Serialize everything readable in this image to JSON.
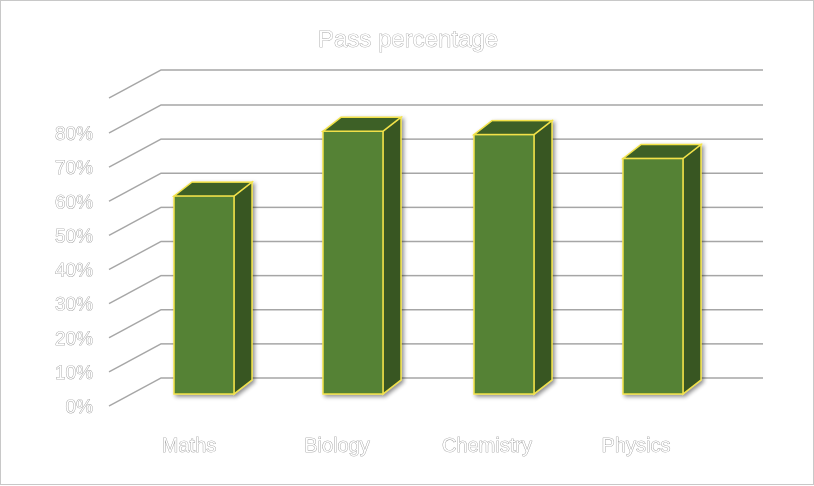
{
  "chart_data": {
    "type": "bar",
    "title": "Pass percentage",
    "categories": [
      "Maths",
      "Biology",
      "Chemistry",
      "Physics"
    ],
    "values": [
      58,
      77,
      76,
      69
    ],
    "ylim": [
      0,
      80
    ],
    "yticks": [
      "0%",
      "10%",
      "20%",
      "30%",
      "40%",
      "50%",
      "60%",
      "70%",
      "80%"
    ],
    "grid": true,
    "three_d": true,
    "legend": "none",
    "colors": {
      "bar_front": "#548235",
      "bar_side": "#375623",
      "bar_top": "#3d6126",
      "bar_outline": "#f2e24a",
      "gridline": "#a6a6a6"
    }
  }
}
